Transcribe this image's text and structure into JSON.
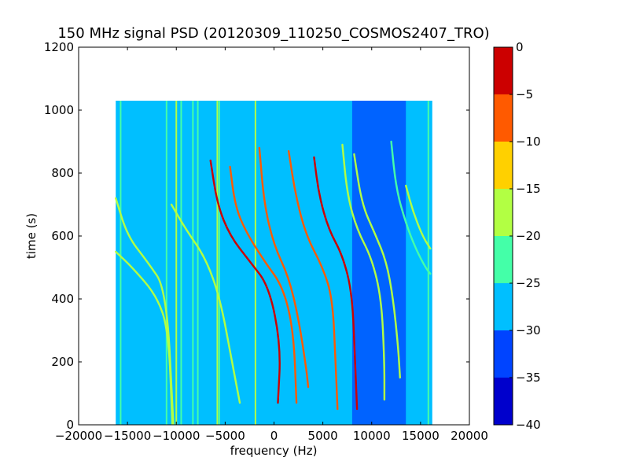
{
  "chart_data": {
    "type": "heatmap",
    "title": "150 MHz signal PSD (20120309_110250_COSMOS2407_TRO)",
    "xlabel": "frequency (Hz)",
    "ylabel": "time (s)",
    "xlim": [
      -20000,
      20000
    ],
    "ylim": [
      0,
      1200
    ],
    "x_ticks": [
      -20000,
      -15000,
      -10000,
      -5000,
      0,
      5000,
      10000,
      15000,
      20000
    ],
    "x_tick_labels": [
      "−20000",
      "−15000",
      "−10000",
      "−5000",
      "0",
      "5000",
      "10000",
      "15000",
      "20000"
    ],
    "y_ticks": [
      0,
      200,
      400,
      600,
      800,
      1000,
      1200
    ],
    "y_tick_labels": [
      "0",
      "200",
      "400",
      "600",
      "800",
      "1000",
      "1200"
    ],
    "data_extent": {
      "x": [
        -16200,
        16200
      ],
      "y": [
        0,
        1030
      ]
    },
    "background_level": -27.5,
    "noisy_band": {
      "x": [
        8000,
        13500
      ],
      "level": -33
    },
    "colorbar": {
      "levels": [
        -40,
        -35,
        -30,
        -25,
        -20,
        -15,
        -10,
        -5,
        0
      ],
      "tick_labels": [
        "−40",
        "−35",
        "−30",
        "−25",
        "−20",
        "−15",
        "−10",
        "−5",
        "0"
      ],
      "colors": [
        "#0000cc",
        "#0044ff",
        "#00bfff",
        "#44ffa8",
        "#b2ff43",
        "#ffd000",
        "#ff5a00",
        "#cc0000"
      ]
    },
    "vertical_lines": [
      {
        "x": -15700,
        "level": -22
      },
      {
        "x": -11000,
        "level": -22
      },
      {
        "x": -10000,
        "level": -17
      },
      {
        "x": -9500,
        "level": -22
      },
      {
        "x": -8300,
        "level": -22
      },
      {
        "x": -7800,
        "level": -22
      },
      {
        "x": -5800,
        "level": -17
      },
      {
        "x": -5600,
        "level": -22
      },
      {
        "x": -1900,
        "level": -17
      },
      {
        "x": 15800,
        "level": -22
      }
    ],
    "series": [
      {
        "level": -17,
        "points": [
          [
            -16200,
            720
          ],
          [
            -15000,
            600
          ],
          [
            -13000,
            520
          ],
          [
            -11000,
            430
          ],
          [
            -10300,
            0
          ]
        ]
      },
      {
        "level": -17,
        "points": [
          [
            -16200,
            550
          ],
          [
            -14500,
            500
          ],
          [
            -12000,
            410
          ],
          [
            -10800,
            300
          ],
          [
            -10400,
            0
          ]
        ]
      },
      {
        "level": -17,
        "points": [
          [
            -10500,
            700
          ],
          [
            -9000,
            620
          ],
          [
            -7000,
            530
          ],
          [
            -5500,
            400
          ],
          [
            -4300,
            200
          ],
          [
            -3500,
            70
          ]
        ]
      },
      {
        "level": -3,
        "points": [
          [
            -6500,
            840
          ],
          [
            -5800,
            700
          ],
          [
            -4500,
            600
          ],
          [
            -2500,
            520
          ],
          [
            -500,
            440
          ],
          [
            700,
            250
          ],
          [
            400,
            70
          ]
        ]
      },
      {
        "level": -8,
        "points": [
          [
            -4500,
            820
          ],
          [
            -4000,
            700
          ],
          [
            -3000,
            620
          ],
          [
            -1000,
            520
          ],
          [
            900,
            440
          ],
          [
            2000,
            300
          ],
          [
            2300,
            70
          ]
        ]
      },
      {
        "level": -8,
        "points": [
          [
            -1500,
            880
          ],
          [
            -1000,
            700
          ],
          [
            0,
            570
          ],
          [
            1500,
            470
          ],
          [
            2500,
            340
          ],
          [
            3300,
            180
          ],
          [
            3500,
            120
          ]
        ]
      },
      {
        "level": -8,
        "points": [
          [
            1500,
            870
          ],
          [
            2200,
            730
          ],
          [
            3300,
            600
          ],
          [
            5000,
            500
          ],
          [
            6000,
            400
          ],
          [
            6300,
            200
          ],
          [
            6500,
            50
          ]
        ]
      },
      {
        "level": -5,
        "points": [
          [
            4100,
            850
          ],
          [
            4600,
            730
          ],
          [
            5600,
            620
          ],
          [
            7000,
            540
          ],
          [
            8000,
            420
          ],
          [
            8300,
            200
          ],
          [
            8500,
            50
          ]
        ]
      },
      {
        "level": -17,
        "points": [
          [
            7000,
            890
          ],
          [
            7500,
            730
          ],
          [
            8500,
            620
          ],
          [
            10000,
            530
          ],
          [
            11000,
            400
          ],
          [
            11300,
            200
          ],
          [
            11300,
            80
          ]
        ]
      },
      {
        "level": -20,
        "points": [
          [
            8200,
            860
          ],
          [
            9000,
            700
          ],
          [
            10300,
            610
          ],
          [
            11500,
            520
          ],
          [
            12200,
            400
          ],
          [
            12700,
            250
          ],
          [
            12900,
            150
          ]
        ]
      },
      {
        "level": -22,
        "points": [
          [
            12000,
            900
          ],
          [
            12500,
            750
          ],
          [
            13500,
            640
          ],
          [
            14500,
            560
          ],
          [
            15500,
            500
          ],
          [
            16000,
            480
          ]
        ]
      },
      {
        "level": -17,
        "points": [
          [
            13500,
            760
          ],
          [
            14200,
            680
          ],
          [
            15200,
            600
          ],
          [
            16000,
            560
          ]
        ]
      }
    ]
  }
}
